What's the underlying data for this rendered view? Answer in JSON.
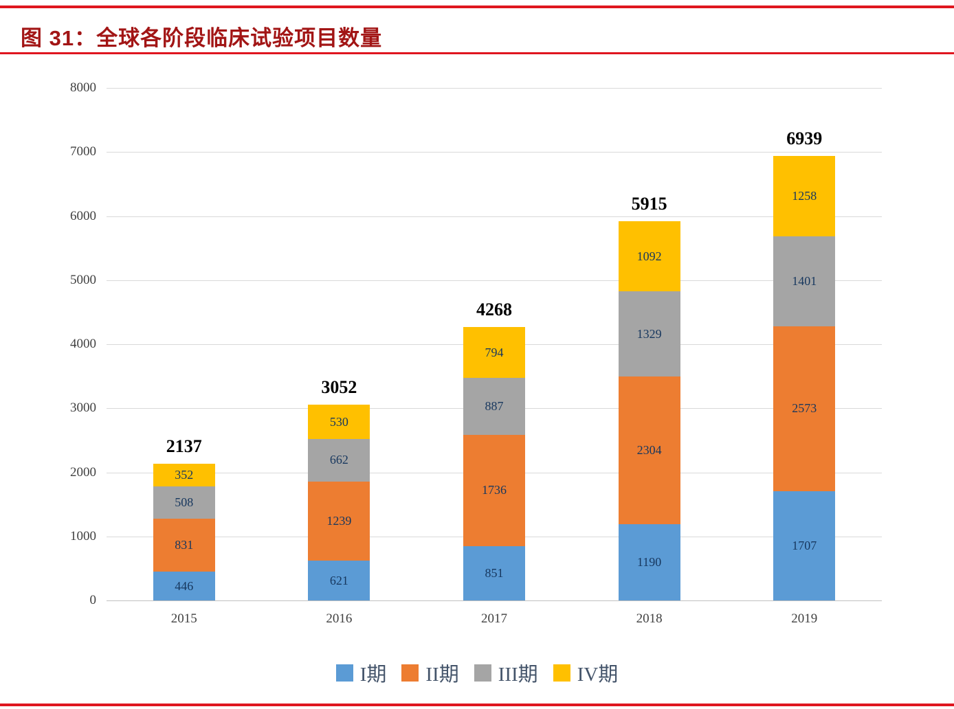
{
  "title": "图 31：全球各阶段临床试验项目数量",
  "colors": {
    "rule_red": "#df161f",
    "title_red": "#a21515",
    "axis_text": "#404040",
    "grid_line": "#d9d9d9",
    "baseline": "#bfbfbf",
    "segment_label": "#17375e",
    "total_label": "#000000",
    "legend_text": "#44546a",
    "background": "#ffffff"
  },
  "chart_data": {
    "type": "bar",
    "stacked": true,
    "title": "全球各阶段临床试验项目数量",
    "categories": [
      "2015",
      "2016",
      "2017",
      "2018",
      "2019"
    ],
    "series": [
      {
        "name": "I期",
        "color": "#5b9bd5",
        "values": [
          446,
          621,
          851,
          1190,
          1707
        ]
      },
      {
        "name": "II期",
        "color": "#ed7d31",
        "values": [
          831,
          1239,
          1736,
          2304,
          2573
        ]
      },
      {
        "name": "III期",
        "color": "#a5a5a5",
        "values": [
          508,
          662,
          887,
          1329,
          1401
        ]
      },
      {
        "name": "IV期",
        "color": "#ffc000",
        "values": [
          352,
          530,
          794,
          1092,
          1258
        ]
      }
    ],
    "totals": [
      2137,
      3052,
      4268,
      5915,
      6939
    ],
    "ylim": [
      0,
      8000
    ],
    "ytick_step": 1000,
    "yticks": [
      0,
      1000,
      2000,
      3000,
      4000,
      5000,
      6000,
      7000,
      8000
    ],
    "grid": true,
    "legend_position": "bottom"
  }
}
